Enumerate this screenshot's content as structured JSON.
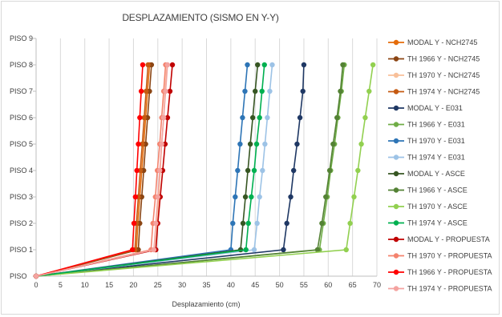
{
  "chart_data": {
    "type": "line",
    "title": "DESPLAZAMIENTO (SISMO EN Y-Y)",
    "xlabel": "Desplazamiento (cm)",
    "ylabel": "",
    "xlim": [
      0,
      70
    ],
    "x_ticks": [
      "0",
      "5",
      "10",
      "15",
      "20",
      "25",
      "30",
      "35",
      "40",
      "45",
      "50",
      "55",
      "60",
      "65",
      "70"
    ],
    "y_categories": [
      "PISO",
      "PISO 1",
      "PISO 2",
      "PISO 3",
      "PISO 4",
      "PISO 5",
      "PISO 6",
      "PISO 7",
      "PISO 8",
      "PISO 9"
    ],
    "grid": "vertical",
    "legend_position": "right",
    "series": [
      {
        "name": "MODAL Y - NCH2745",
        "color": "#e46c0a",
        "values": [
          0,
          20.6,
          20.9,
          21.3,
          21.7,
          22.1,
          22.5,
          22.9,
          23.3
        ]
      },
      {
        "name": "TH 1966 Y - NCH2745",
        "color": "#8b4513",
        "values": [
          0,
          21.0,
          21.3,
          21.7,
          22.1,
          22.5,
          22.9,
          23.3,
          23.7
        ]
      },
      {
        "name": "TH 1970 Y - NCH2745",
        "color": "#f8c09a",
        "values": [
          0,
          24.5,
          24.9,
          25.2,
          25.5,
          25.8,
          26.2,
          26.5,
          26.9
        ]
      },
      {
        "name": "TH 1974 Y - NCH2745",
        "color": "#c55a11",
        "values": [
          0,
          20.3,
          20.6,
          21.0,
          21.4,
          21.8,
          22.2,
          22.6,
          23.0
        ]
      },
      {
        "name": "MODAL Y - E031",
        "color": "#1f3864",
        "values": [
          0,
          50.8,
          51.5,
          52.3,
          52.9,
          53.6,
          54.2,
          54.8,
          55.0
        ]
      },
      {
        "name": "TH 1966 Y  - E031",
        "color": "#70ad47",
        "values": [
          0,
          58.2,
          59.0,
          59.8,
          60.5,
          61.3,
          62.0,
          62.7,
          63.3
        ]
      },
      {
        "name": "TH 1970 Y - E031",
        "color": "#2e75b6",
        "values": [
          0,
          40.0,
          40.4,
          40.9,
          41.4,
          41.9,
          42.4,
          42.9,
          43.4
        ]
      },
      {
        "name": "TH 1974 Y - E031",
        "color": "#9dc3e6",
        "values": [
          0,
          44.8,
          45.4,
          45.9,
          46.5,
          47.0,
          47.5,
          48.0,
          48.5
        ]
      },
      {
        "name": "MODAL Y - ASCE",
        "color": "#375623",
        "values": [
          0,
          42.0,
          42.5,
          43.0,
          43.5,
          44.0,
          44.5,
          45.0,
          45.5
        ]
      },
      {
        "name": "TH 1966 Y - ASCE",
        "color": "#548235",
        "values": [
          0,
          57.8,
          58.7,
          59.5,
          60.3,
          61.0,
          61.8,
          62.5,
          63.0
        ]
      },
      {
        "name": "TH 1970 Y - ASCE",
        "color": "#92d050",
        "values": [
          0,
          63.7,
          64.5,
          65.3,
          66.1,
          66.8,
          67.6,
          68.4,
          69.2
        ]
      },
      {
        "name": "TH 1974 Y - ASCE",
        "color": "#00b050",
        "values": [
          0,
          43.1,
          43.6,
          44.2,
          44.8,
          45.3,
          45.9,
          46.4,
          46.9
        ]
      },
      {
        "name": "MODAL Y - PROPUESTA",
        "color": "#c00000",
        "values": [
          0,
          24.6,
          25.0,
          25.5,
          26.0,
          26.5,
          27.0,
          27.5,
          28.0
        ]
      },
      {
        "name": "TH 1970 Y - PROPUESTA",
        "color": "#f4836e",
        "values": [
          0,
          23.6,
          24.0,
          24.5,
          24.9,
          25.4,
          25.8,
          26.2,
          26.6
        ]
      },
      {
        "name": "TH 1966 Y - PROPUESTA",
        "color": "#ff0000",
        "values": [
          0,
          19.8,
          20.1,
          20.4,
          20.7,
          21.0,
          21.3,
          21.6,
          21.9
        ]
      },
      {
        "name": "TH 1974 Y - PROPUESTA",
        "color": "#f4a3a0",
        "values": [
          0,
          24.2,
          24.6,
          25.0,
          25.4,
          25.8,
          26.2,
          26.6,
          27.0
        ]
      }
    ]
  }
}
